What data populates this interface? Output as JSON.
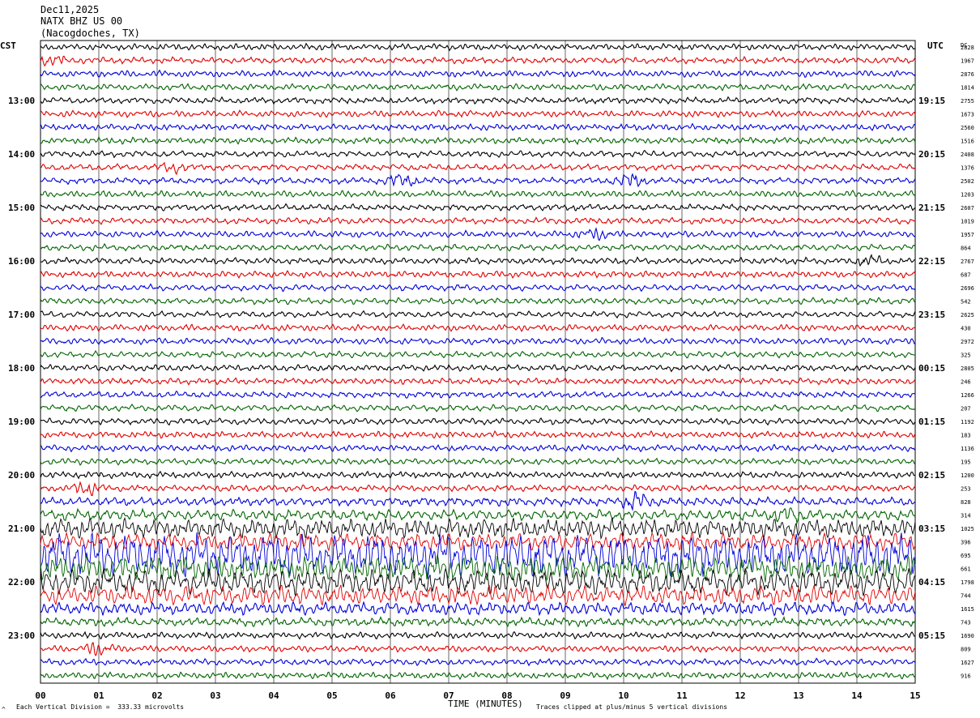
{
  "header": {
    "date": "Dec11,2025",
    "station": "NATX BHZ US 00",
    "location": "(Nacogdoches, TX)"
  },
  "corners": {
    "left_zone": "CST",
    "right_zone": "UTC",
    "dc_label": "DC"
  },
  "footer": {
    "scale_note": "Each Vertical Division =  333.33 microvolts",
    "clip_note": "Traces clipped at plus/minus 5 vertical divisions",
    "corner_mark": "^"
  },
  "colors": {
    "trace_cycle": [
      "#000000",
      "#e00000",
      "#0000d8",
      "#006400"
    ],
    "grid": "#000000"
  },
  "chart_data": {
    "type": "line",
    "xlabel": "TIME (MINUTES)",
    "x_ticks": [
      "00",
      "01",
      "02",
      "03",
      "04",
      "05",
      "06",
      "07",
      "08",
      "09",
      "10",
      "11",
      "12",
      "13",
      "14",
      "15"
    ],
    "xlim": [
      0,
      15
    ],
    "traces_per_hour": 4,
    "left_hour_labels": [
      "13:00",
      "14:00",
      "15:00",
      "16:00",
      "17:00",
      "18:00",
      "19:00",
      "20:00",
      "21:00",
      "22:00",
      "23:00"
    ],
    "right_hour_labels": [
      "19:15",
      "20:15",
      "21:15",
      "22:15",
      "23:15",
      "00:15",
      "01:15",
      "02:15",
      "03:15",
      "04:15",
      "05:15"
    ],
    "dc_offsets": [
      "2828",
      "1967",
      "2876",
      "1814",
      "2755",
      "1673",
      "2560",
      "1516",
      "2408",
      "1376",
      "2502",
      "1203",
      "2607",
      "1019",
      "1957",
      "864",
      "2767",
      "687",
      "2696",
      "542",
      "2625",
      "430",
      "2972",
      "325",
      "2805",
      "246",
      "1266",
      "207",
      "1192",
      "183",
      "1136",
      "195",
      "1200",
      "253",
      "828",
      "314",
      "1025",
      "396",
      "695",
      "661",
      "1798",
      "744",
      "1615",
      "743",
      "1690",
      "809",
      "1627",
      "916"
    ],
    "trace_amplitude": [
      3,
      3,
      3,
      3,
      3,
      3,
      3,
      3,
      3,
      3,
      3,
      3,
      3,
      3,
      3,
      3,
      3,
      3,
      3,
      3,
      3,
      3,
      3,
      3,
      3,
      3,
      3,
      3,
      3,
      3,
      3,
      3,
      3,
      3,
      4,
      5,
      9,
      8,
      20,
      12,
      12,
      9,
      6,
      4,
      3,
      3,
      3,
      3
    ],
    "events": [
      {
        "trace": 1,
        "minute": 0.2,
        "strength": 2
      },
      {
        "trace": 9,
        "minute": 2.3,
        "strength": 2
      },
      {
        "trace": 10,
        "minute": 6.2,
        "strength": 3
      },
      {
        "trace": 10,
        "minute": 10.1,
        "strength": 3
      },
      {
        "trace": 14,
        "minute": 9.5,
        "strength": 2
      },
      {
        "trace": 16,
        "minute": 14.2,
        "strength": 2
      },
      {
        "trace": 33,
        "minute": 0.8,
        "strength": 3
      },
      {
        "trace": 34,
        "minute": 10.2,
        "strength": 4
      },
      {
        "trace": 35,
        "minute": 12.8,
        "strength": 3
      },
      {
        "trace": 45,
        "minute": 1.0,
        "strength": 3
      }
    ]
  }
}
